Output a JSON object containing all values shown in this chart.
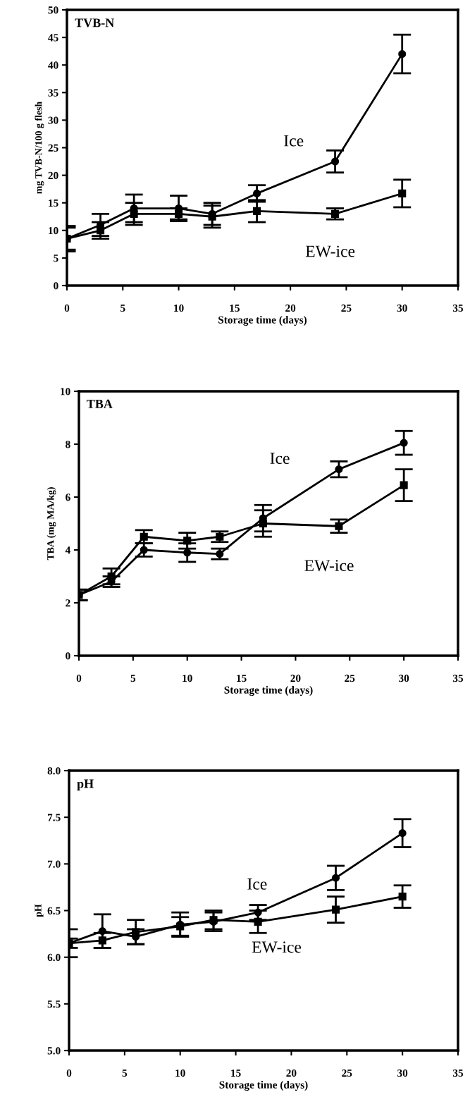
{
  "chart_data": [
    {
      "type": "line",
      "title": "TVB-N",
      "xlabel": "Storage time (days)",
      "ylabel": "mg TVB-N/100 g flesh",
      "xlim": [
        0,
        35
      ],
      "xticks": [
        0,
        5,
        10,
        15,
        20,
        25,
        30,
        35
      ],
      "ylim": [
        0,
        50
      ],
      "yticks": [
        0,
        5,
        10,
        15,
        20,
        25,
        30,
        35,
        40,
        45,
        50
      ],
      "grid": false,
      "legend": false,
      "line_style": "solid",
      "x": [
        0,
        3,
        6,
        10,
        13,
        17,
        24,
        30
      ],
      "series": [
        {
          "name": "Ice",
          "color": "#000000",
          "marker": "circle",
          "values": [
            8.5,
            11,
            14,
            14,
            13,
            16.7,
            22.5,
            42
          ],
          "errors": [
            2.3,
            2,
            2.5,
            2.3,
            2,
            1.5,
            2,
            3.5
          ]
        },
        {
          "name": "EW-ice",
          "color": "#000000",
          "marker": "square",
          "values": [
            8.5,
            10,
            13,
            13,
            12.5,
            13.5,
            13,
            16.7
          ],
          "errors": [
            2,
            1.5,
            2,
            1,
            2,
            2,
            1,
            2.5
          ]
        }
      ]
    },
    {
      "type": "line",
      "title": "TBA",
      "xlabel": "Storage time (days)",
      "ylabel": "TBA (mg MA/kg)",
      "xlim": [
        0,
        35
      ],
      "xticks": [
        0,
        5,
        10,
        15,
        20,
        25,
        30,
        35
      ],
      "ylim": [
        0,
        10
      ],
      "yticks": [
        0,
        2,
        4,
        6,
        8,
        10
      ],
      "grid": false,
      "legend": false,
      "line_style": "solid",
      "x": [
        0,
        3,
        6,
        10,
        13,
        17,
        24,
        30
      ],
      "series": [
        {
          "name": "Ice",
          "color": "#000000",
          "marker": "circle",
          "values": [
            2.3,
            2.8,
            4.0,
            3.9,
            3.85,
            5.2,
            7.05,
            8.05
          ],
          "errors": [
            0.2,
            0.2,
            0.25,
            0.35,
            0.2,
            0.5,
            0.3,
            0.45
          ]
        },
        {
          "name": "EW-ice",
          "color": "#000000",
          "marker": "square",
          "values": [
            2.3,
            3.0,
            4.5,
            4.35,
            4.5,
            5.0,
            4.9,
            6.45
          ],
          "errors": [
            0.2,
            0.3,
            0.25,
            0.3,
            0.2,
            0.5,
            0.25,
            0.6
          ]
        }
      ]
    },
    {
      "type": "line",
      "title": "pH",
      "xlabel": "Storage time (days)",
      "ylabel": "pH",
      "xlim": [
        0,
        35
      ],
      "xticks": [
        0,
        5,
        10,
        15,
        20,
        25,
        30,
        35
      ],
      "ylim": [
        5.0,
        8.0
      ],
      "yticks": [
        {
          "value": 5.0,
          "label": "5.0"
        },
        5.5,
        {
          "value": 6.0,
          "label": "6.0"
        },
        6.5,
        {
          "value": 7.0,
          "label": "7.0"
        },
        7.5,
        {
          "value": 8.0,
          "label": "8.0"
        }
      ],
      "grid": false,
      "legend": false,
      "line_style": "solid",
      "x": [
        0,
        3,
        6,
        10,
        13,
        17,
        24,
        30
      ],
      "series": [
        {
          "name": "Ice",
          "color": "#000000",
          "marker": "circle",
          "values": [
            6.15,
            6.28,
            6.22,
            6.35,
            6.38,
            6.48,
            6.85,
            7.33
          ],
          "errors": [
            0.15,
            0.18,
            0.08,
            0.13,
            0.1,
            0.08,
            0.13,
            0.15
          ]
        },
        {
          "name": "EW-ice",
          "color": "#000000",
          "marker": "square",
          "values": [
            6.15,
            6.18,
            6.27,
            6.33,
            6.4,
            6.38,
            6.51,
            6.65
          ],
          "errors": [
            0.05,
            0.08,
            0.13,
            0.1,
            0.1,
            0.12,
            0.14,
            0.12
          ]
        }
      ]
    }
  ]
}
